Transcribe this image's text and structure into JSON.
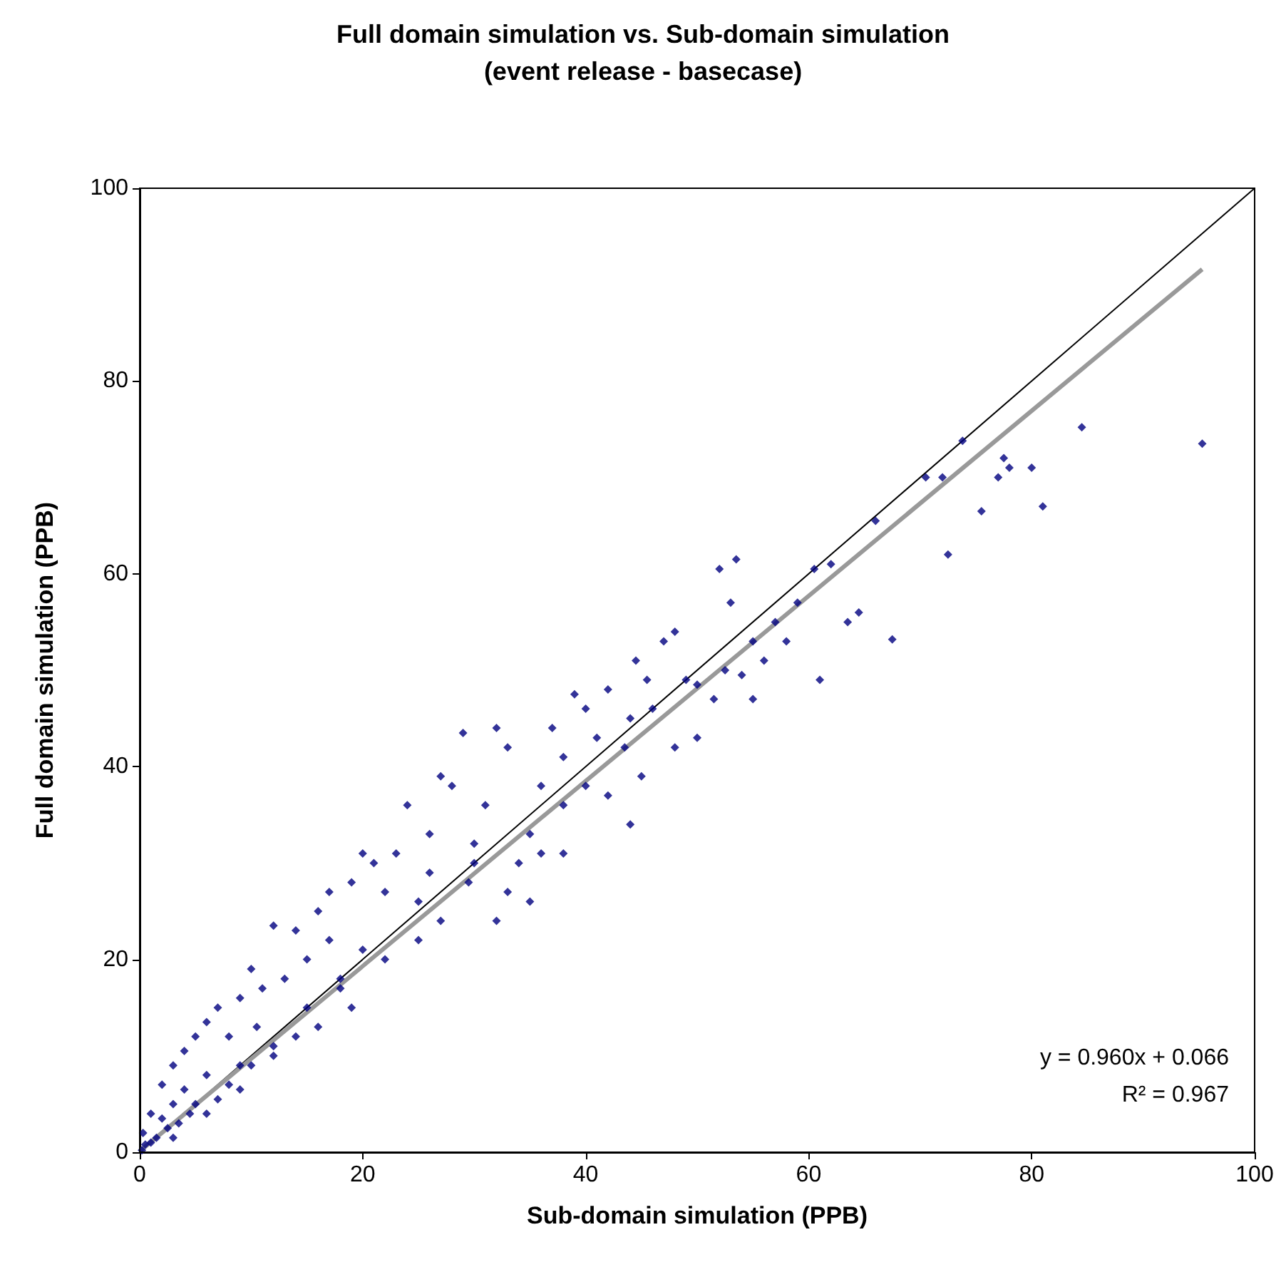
{
  "chart_data": {
    "type": "scatter",
    "title": "Full domain simulation vs. Sub-domain simulation",
    "subtitle": "(event release - basecase)",
    "xlabel": "Sub-domain simulation (PPB)",
    "ylabel": "Full domain simulation (PPB)",
    "xlim": [
      0,
      100
    ],
    "ylim": [
      0,
      100
    ],
    "xticks": [
      0,
      20,
      40,
      60,
      80,
      100
    ],
    "yticks": [
      0,
      20,
      40,
      60,
      80,
      100
    ],
    "grid": false,
    "annotations": [
      "y = 0.960x + 0.066",
      "R² = 0.967"
    ],
    "series": [
      {
        "marker": "diamond",
        "color": "#000080",
        "x": [
          95.3,
          84.5,
          81,
          80,
          78,
          77.5,
          77,
          75.5,
          73.8,
          72.5,
          72,
          70.5,
          67.5,
          66,
          64.5,
          63.5,
          62,
          61,
          60.5,
          59,
          57,
          56,
          55,
          54,
          53.5,
          52,
          53,
          52.5,
          51.5,
          50,
          49,
          48,
          47,
          46,
          45.5,
          44.5,
          44,
          43.5,
          42,
          41,
          40,
          40,
          39,
          38,
          38,
          37,
          36,
          35,
          34,
          33,
          32,
          31,
          30,
          29,
          29.5,
          28,
          27,
          27,
          26,
          25,
          24,
          23,
          22,
          21,
          20,
          20,
          19,
          18,
          17,
          17,
          16,
          15,
          15,
          14,
          14,
          13,
          12,
          12,
          11,
          10.5,
          10,
          9,
          9,
          8,
          8,
          7,
          7,
          6,
          6,
          5,
          5,
          4.5,
          4,
          4,
          3.5,
          3,
          3,
          2.5,
          2,
          2,
          1.5,
          1,
          1,
          0.5,
          0.3,
          0.2,
          33,
          45,
          48,
          55,
          58,
          36,
          25,
          30,
          42,
          50,
          18,
          22,
          26,
          38,
          44,
          10,
          12,
          16,
          19,
          3,
          6,
          9,
          32,
          35
        ],
        "values": [
          73.5,
          75.2,
          67,
          71,
          71,
          72,
          70,
          66.5,
          73.8,
          62,
          70,
          70,
          53.2,
          65.5,
          56,
          55,
          61,
          49,
          60.5,
          57,
          55,
          51,
          53,
          49.5,
          61.5,
          60.5,
          57,
          50,
          47,
          48.5,
          49,
          54,
          53,
          46,
          49,
          51,
          45,
          42,
          48,
          43,
          46,
          38,
          47.5,
          41,
          36,
          44,
          31,
          33,
          30,
          42,
          44,
          36,
          32,
          43.5,
          28,
          38,
          39,
          24,
          33,
          22,
          36,
          31,
          27,
          30,
          31,
          21,
          28,
          17,
          27,
          22,
          25,
          15,
          20,
          12,
          23,
          18,
          23.5,
          10,
          17,
          13,
          19,
          16,
          9,
          12,
          7,
          15,
          5.5,
          13.5,
          8,
          12,
          5,
          4,
          10.5,
          6.5,
          3,
          9,
          5,
          2.5,
          7,
          3.5,
          1.5,
          4,
          1,
          0.8,
          2,
          0.2,
          27,
          39,
          42,
          47,
          53,
          38,
          26,
          30,
          37,
          43,
          18,
          20,
          29,
          31,
          34,
          9,
          11,
          13,
          15,
          1.5,
          4,
          6.5,
          24,
          26
        ]
      },
      {
        "type": "line",
        "marker": "none",
        "color": "#000000",
        "x": [
          0,
          100
        ],
        "values": [
          0,
          100
        ]
      },
      {
        "type": "line",
        "marker": "none",
        "color": "#999999",
        "x": [
          0,
          95.3
        ],
        "values": [
          0.1,
          91.6
        ]
      }
    ]
  }
}
